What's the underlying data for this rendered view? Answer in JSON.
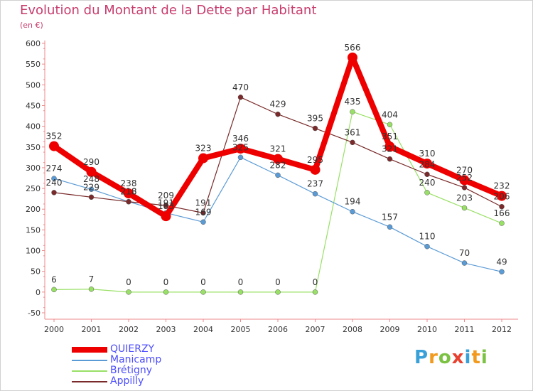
{
  "chart_data": {
    "type": "line",
    "title": "Evolution du Montant de la Dette par Habitant",
    "subtitle": "(en €)",
    "x": [
      "2000",
      "2001",
      "2002",
      "2003",
      "2004",
      "2005",
      "2006",
      "2007",
      "2008",
      "2009",
      "2010",
      "2011",
      "2012"
    ],
    "ylim": [
      -50,
      600
    ],
    "yticks": [
      -50,
      0,
      50,
      100,
      150,
      200,
      250,
      300,
      350,
      400,
      450,
      500,
      550,
      600
    ],
    "grid": false,
    "legend_position": "bottom-left",
    "series": [
      {
        "name": "QUIERZY",
        "color": "#ee0000",
        "values": [
          352,
          290,
          238,
          183,
          323,
          346,
          321,
          295,
          566,
          351,
          310,
          270,
          232
        ]
      },
      {
        "name": "Manicamp",
        "color": "#5b9bd5",
        "values": [
          274,
          248,
          218,
          191,
          169,
          325,
          282,
          237,
          194,
          157,
          110,
          70,
          49
        ]
      },
      {
        "name": "Brétigny",
        "color": "#99e066",
        "values": [
          6,
          7,
          0,
          0,
          0,
          0,
          0,
          0,
          435,
          404,
          240,
          203,
          166
        ]
      },
      {
        "name": "Appilly",
        "color": "#7a2a2a",
        "values": [
          240,
          229,
          218,
          209,
          191,
          470,
          429,
          395,
          361,
          321,
          284,
          252,
          206
        ]
      }
    ]
  },
  "logo": {
    "letters": [
      "P",
      "r",
      "o",
      "x",
      "i",
      "t",
      "i"
    ]
  }
}
